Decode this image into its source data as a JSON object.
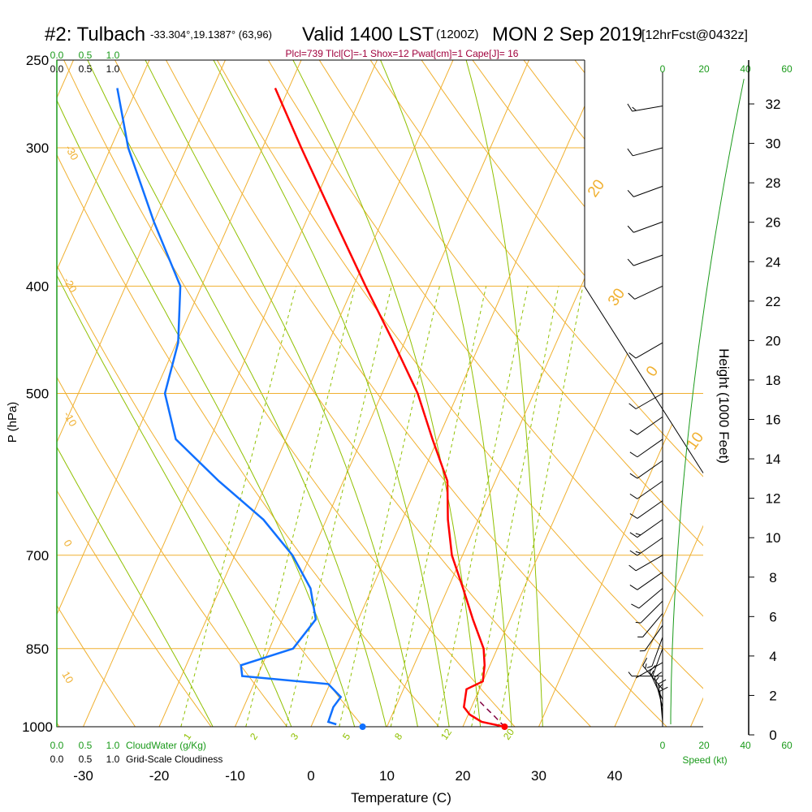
{
  "header": {
    "station": "#2: Tulbach",
    "coords": "-33.304°,19.1387° (63,96)",
    "valid": "Valid 1400 LST",
    "zulu": "(1200Z)",
    "date": "MON 2 Sep 2019",
    "forecast": "[12hrFcst@0432z]",
    "indices": "Plcl=739 Tlcl[C]=-1 Shox=12 Pwat[cm]=1 Cape[J]= 16"
  },
  "chart_data": {
    "type": "line",
    "title": "#2: Tulbach",
    "xlabel": "Temperature (C)",
    "ylabel": "P (hPa)",
    "xlim": [
      -35,
      35
    ],
    "ylim": [
      1000,
      250
    ],
    "y_scale": "log",
    "x_ticks": [
      -30,
      -20,
      -10,
      0,
      10,
      20,
      30,
      40
    ],
    "pressure_ticks": [
      250,
      300,
      400,
      500,
      700,
      850,
      1000
    ],
    "skew_per_decade": 64.3,
    "temperature_profile": [
      {
        "p": 1000,
        "t": 25.5
      },
      {
        "p": 990,
        "t": 22.2
      },
      {
        "p": 975,
        "t": 20.2
      },
      {
        "p": 960,
        "t": 19.0
      },
      {
        "p": 940,
        "t": 18.6
      },
      {
        "p": 925,
        "t": 18.3
      },
      {
        "p": 910,
        "t": 20.0
      },
      {
        "p": 880,
        "t": 19.3
      },
      {
        "p": 850,
        "t": 18.2
      },
      {
        "p": 800,
        "t": 15.1
      },
      {
        "p": 750,
        "t": 12.0
      },
      {
        "p": 700,
        "t": 8.6
      },
      {
        "p": 650,
        "t": 6.0
      },
      {
        "p": 600,
        "t": 3.7
      },
      {
        "p": 550,
        "t": -0.7
      },
      {
        "p": 500,
        "t": -5.3
      },
      {
        "p": 450,
        "t": -11.4
      },
      {
        "p": 400,
        "t": -18.4
      },
      {
        "p": 350,
        "t": -26.1
      },
      {
        "p": 300,
        "t": -34.9
      },
      {
        "p": 265,
        "t": -41.8
      }
    ],
    "dewpoint_profile": [
      {
        "p": 995,
        "t": 3.2
      },
      {
        "p": 990,
        "t": 2.0
      },
      {
        "p": 960,
        "t": 1.8
      },
      {
        "p": 940,
        "t": 2.2
      },
      {
        "p": 915,
        "t": -0.2
      },
      {
        "p": 900,
        "t": -12.0
      },
      {
        "p": 880,
        "t": -12.8
      },
      {
        "p": 850,
        "t": -6.9
      },
      {
        "p": 800,
        "t": -5.6
      },
      {
        "p": 750,
        "t": -8.1
      },
      {
        "p": 700,
        "t": -12.4
      },
      {
        "p": 650,
        "t": -18.3
      },
      {
        "p": 600,
        "t": -26.4
      },
      {
        "p": 550,
        "t": -34.5
      },
      {
        "p": 500,
        "t": -38.6
      },
      {
        "p": 450,
        "t": -39.8
      },
      {
        "p": 400,
        "t": -42.8
      },
      {
        "p": 350,
        "t": -50.0
      },
      {
        "p": 300,
        "t": -57.7
      },
      {
        "p": 265,
        "t": -62.6
      }
    ],
    "parcel_path": [
      {
        "p": 1000,
        "t": 25.5
      },
      {
        "p": 980,
        "t": 23.7
      },
      {
        "p": 960,
        "t": 21.8
      },
      {
        "p": 943,
        "t": 20.2
      }
    ],
    "surface_temperature": 25.5,
    "surface_dewpoint": 6.8,
    "dry_adiabat_labels": [
      "-30",
      "-20",
      "-10",
      "0",
      "10",
      "20",
      "30",
      "0",
      "10",
      "20",
      "30"
    ],
    "mixing_ratio_labels": [
      "1",
      "2",
      "3",
      "5",
      "8",
      "12",
      "20"
    ],
    "height_axis": {
      "label": "Height (1000 Feet)",
      "ticks": [
        "0",
        "2",
        "4",
        "6",
        "8",
        "10",
        "12",
        "14",
        "16",
        "18",
        "20",
        "22",
        "24",
        "26",
        "28",
        "30",
        "32"
      ]
    },
    "wind_speed_axis": {
      "label": "Speed (kt)",
      "ticks": [
        "0",
        "20",
        "40",
        "60"
      ]
    },
    "cloud_scales": {
      "cloud_water_label": "CloudWater (g/Kg)",
      "cloudiness_label": "Grid-Scale Cloudiness",
      "ticks": [
        "0.0",
        "0.5",
        "1.0"
      ]
    },
    "wind_barbs": [
      {
        "p": 990,
        "dir": 175,
        "spd": 14
      },
      {
        "p": 975,
        "dir": 172,
        "spd": 16
      },
      {
        "p": 960,
        "dir": 165,
        "spd": 17
      },
      {
        "p": 945,
        "dir": 155,
        "spd": 17
      },
      {
        "p": 925,
        "dir": 140,
        "spd": 17
      },
      {
        "p": 900,
        "dir": 90,
        "spd": 8
      },
      {
        "p": 875,
        "dir": 60,
        "spd": 4
      },
      {
        "p": 850,
        "dir": 20,
        "spd": 3
      },
      {
        "p": 830,
        "dir": 20,
        "spd": 5
      },
      {
        "p": 810,
        "dir": 35,
        "spd": 6
      },
      {
        "p": 790,
        "dir": 40,
        "spd": 8
      },
      {
        "p": 770,
        "dir": 45,
        "spd": 9
      },
      {
        "p": 750,
        "dir": 50,
        "spd": 10
      },
      {
        "p": 725,
        "dir": 55,
        "spd": 12
      },
      {
        "p": 700,
        "dir": 60,
        "spd": 14
      },
      {
        "p": 675,
        "dir": 55,
        "spd": 15
      },
      {
        "p": 650,
        "dir": 55,
        "spd": 15
      },
      {
        "p": 625,
        "dir": 55,
        "spd": 14
      },
      {
        "p": 600,
        "dir": 55,
        "spd": 13
      },
      {
        "p": 575,
        "dir": 55,
        "spd": 12
      },
      {
        "p": 550,
        "dir": 55,
        "spd": 11
      },
      {
        "p": 525,
        "dir": 55,
        "spd": 10
      },
      {
        "p": 500,
        "dir": 60,
        "spd": 10
      },
      {
        "p": 450,
        "dir": 60,
        "spd": 10
      },
      {
        "p": 400,
        "dir": 65,
        "spd": 10
      },
      {
        "p": 375,
        "dir": 70,
        "spd": 10
      },
      {
        "p": 350,
        "dir": 70,
        "spd": 10
      },
      {
        "p": 325,
        "dir": 70,
        "spd": 10
      },
      {
        "p": 300,
        "dir": 75,
        "spd": 10
      },
      {
        "p": 275,
        "dir": 80,
        "spd": 15
      }
    ],
    "colors": {
      "temperature": "#ff0000",
      "dewpoint": "#1070ff",
      "parcel": "#800040",
      "isotherms": "#f0b030",
      "adiabats": "#f0b030",
      "moist_adiabats": "#90c000",
      "mixing_ratio": "#90c000",
      "height_axis": "#00a000",
      "wind_barbs": "#000000"
    }
  }
}
